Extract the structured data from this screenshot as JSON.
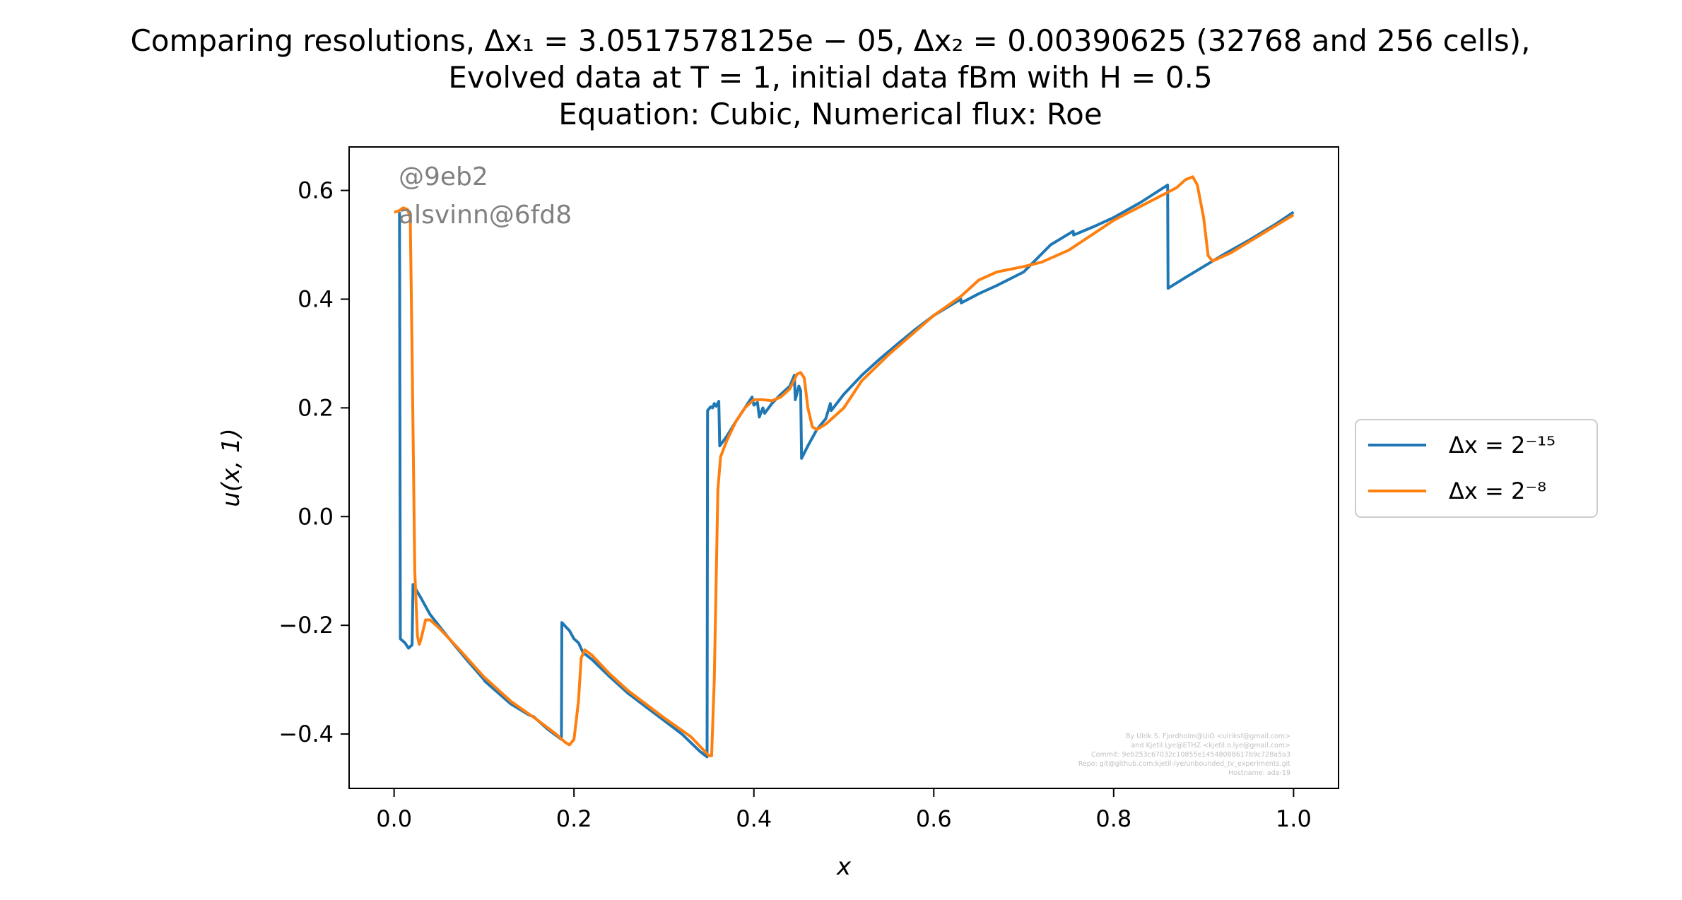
{
  "chart_data": {
    "type": "line",
    "title": [
      "Comparing resolutions, Δx₁ = 3.0517578125e − 05, Δx₂ = 0.00390625 (32768 and 256 cells),",
      "Evolved data at T = 1, initial data fBm with H = 0.5",
      "Equation: Cubic, Numerical flux: Roe"
    ],
    "xlabel": "x",
    "ylabel": "u(x, 1)",
    "xlim": [
      -0.05,
      1.05
    ],
    "ylim": [
      -0.5,
      0.68
    ],
    "xticks": [
      0.0,
      0.2,
      0.4,
      0.6,
      0.8,
      1.0
    ],
    "xtick_labels": [
      "0.0",
      "0.2",
      "0.4",
      "0.6",
      "0.8",
      "1.0"
    ],
    "yticks": [
      -0.4,
      -0.2,
      0.0,
      0.2,
      0.4,
      0.6
    ],
    "ytick_labels": [
      "−0.4",
      "−0.2",
      "0.0",
      "0.2",
      "0.4",
      "0.6"
    ],
    "grid": false,
    "legend_position": "outside-right",
    "watermarks": [
      "@9eb2",
      "alsvinn@6fd8"
    ],
    "footer_lines": [
      "By Ulrik S. Fjordholm@UiO <ulriksf@gmail.com>",
      "and Kjetil Lye@ETHZ <kjetil.o.lye@gmail.com>",
      "Commit: 9eb253c67032c10855e14548088617b9c728a5a3",
      "Repo: git@github.com:kjetil-lye/unbounded_tv_experiments.git",
      "Hostname: ada-19"
    ],
    "series": [
      {
        "name": "Δx = 2⁻¹⁵",
        "color": "#1f77b4",
        "points": [
          [
            0.006,
            0.56
          ],
          [
            0.007,
            -0.225
          ],
          [
            0.012,
            -0.232
          ],
          [
            0.016,
            -0.242
          ],
          [
            0.02,
            -0.236
          ],
          [
            0.021,
            -0.125
          ],
          [
            0.03,
            -0.15
          ],
          [
            0.04,
            -0.18
          ],
          [
            0.06,
            -0.222
          ],
          [
            0.08,
            -0.262
          ],
          [
            0.1,
            -0.3
          ],
          [
            0.101,
            -0.303
          ],
          [
            0.13,
            -0.345
          ],
          [
            0.15,
            -0.365
          ],
          [
            0.155,
            -0.368
          ],
          [
            0.17,
            -0.39
          ],
          [
            0.186,
            -0.41
          ],
          [
            0.1865,
            -0.195
          ],
          [
            0.195,
            -0.21
          ],
          [
            0.2,
            -0.225
          ],
          [
            0.205,
            -0.232
          ],
          [
            0.21,
            -0.25
          ],
          [
            0.22,
            -0.263
          ],
          [
            0.24,
            -0.295
          ],
          [
            0.26,
            -0.325
          ],
          [
            0.28,
            -0.35
          ],
          [
            0.3,
            -0.375
          ],
          [
            0.32,
            -0.4
          ],
          [
            0.34,
            -0.432
          ],
          [
            0.348,
            -0.442
          ],
          [
            0.3485,
            0.195
          ],
          [
            0.352,
            0.202
          ],
          [
            0.354,
            0.2
          ],
          [
            0.356,
            0.208
          ],
          [
            0.358,
            0.203
          ],
          [
            0.361,
            0.212
          ],
          [
            0.362,
            0.13
          ],
          [
            0.37,
            0.148
          ],
          [
            0.38,
            0.175
          ],
          [
            0.39,
            0.2
          ],
          [
            0.398,
            0.22
          ],
          [
            0.4,
            0.205
          ],
          [
            0.404,
            0.21
          ],
          [
            0.406,
            0.183
          ],
          [
            0.41,
            0.2
          ],
          [
            0.412,
            0.19
          ],
          [
            0.42,
            0.208
          ],
          [
            0.43,
            0.225
          ],
          [
            0.44,
            0.24
          ],
          [
            0.445,
            0.26
          ],
          [
            0.446,
            0.215
          ],
          [
            0.45,
            0.24
          ],
          [
            0.452,
            0.232
          ],
          [
            0.453,
            0.107
          ],
          [
            0.46,
            0.13
          ],
          [
            0.47,
            0.16
          ],
          [
            0.48,
            0.18
          ],
          [
            0.485,
            0.208
          ],
          [
            0.486,
            0.195
          ],
          [
            0.5,
            0.225
          ],
          [
            0.52,
            0.26
          ],
          [
            0.54,
            0.29
          ],
          [
            0.56,
            0.318
          ],
          [
            0.58,
            0.345
          ],
          [
            0.6,
            0.37
          ],
          [
            0.62,
            0.39
          ],
          [
            0.63,
            0.4
          ],
          [
            0.6305,
            0.393
          ],
          [
            0.65,
            0.41
          ],
          [
            0.67,
            0.425
          ],
          [
            0.7,
            0.45
          ],
          [
            0.73,
            0.5
          ],
          [
            0.755,
            0.525
          ],
          [
            0.7555,
            0.518
          ],
          [
            0.78,
            0.535
          ],
          [
            0.8,
            0.55
          ],
          [
            0.83,
            0.578
          ],
          [
            0.86,
            0.61
          ],
          [
            0.8605,
            0.42
          ],
          [
            0.88,
            0.44
          ],
          [
            0.9,
            0.46
          ],
          [
            0.92,
            0.48
          ],
          [
            0.95,
            0.508
          ],
          [
            0.98,
            0.538
          ],
          [
            1.0,
            0.56
          ]
        ]
      },
      {
        "name": "Δx = 2⁻⁸",
        "color": "#ff7f0e",
        "points": [
          [
            0.0,
            0.56
          ],
          [
            0.005,
            0.562
          ],
          [
            0.01,
            0.568
          ],
          [
            0.015,
            0.565
          ],
          [
            0.018,
            0.55
          ],
          [
            0.02,
            0.3
          ],
          [
            0.023,
            -0.1
          ],
          [
            0.026,
            -0.22
          ],
          [
            0.028,
            -0.235
          ],
          [
            0.03,
            -0.225
          ],
          [
            0.035,
            -0.19
          ],
          [
            0.04,
            -0.19
          ],
          [
            0.05,
            -0.205
          ],
          [
            0.07,
            -0.24
          ],
          [
            0.1,
            -0.295
          ],
          [
            0.13,
            -0.34
          ],
          [
            0.16,
            -0.375
          ],
          [
            0.18,
            -0.4
          ],
          [
            0.19,
            -0.415
          ],
          [
            0.195,
            -0.42
          ],
          [
            0.2,
            -0.41
          ],
          [
            0.205,
            -0.34
          ],
          [
            0.208,
            -0.26
          ],
          [
            0.212,
            -0.245
          ],
          [
            0.22,
            -0.255
          ],
          [
            0.24,
            -0.29
          ],
          [
            0.26,
            -0.32
          ],
          [
            0.3,
            -0.37
          ],
          [
            0.33,
            -0.405
          ],
          [
            0.35,
            -0.44
          ],
          [
            0.353,
            -0.44
          ],
          [
            0.356,
            -0.3
          ],
          [
            0.36,
            0.05
          ],
          [
            0.363,
            0.11
          ],
          [
            0.37,
            0.14
          ],
          [
            0.38,
            0.175
          ],
          [
            0.39,
            0.2
          ],
          [
            0.4,
            0.215
          ],
          [
            0.41,
            0.215
          ],
          [
            0.42,
            0.213
          ],
          [
            0.43,
            0.22
          ],
          [
            0.44,
            0.235
          ],
          [
            0.448,
            0.262
          ],
          [
            0.452,
            0.265
          ],
          [
            0.456,
            0.255
          ],
          [
            0.46,
            0.2
          ],
          [
            0.465,
            0.165
          ],
          [
            0.47,
            0.16
          ],
          [
            0.48,
            0.17
          ],
          [
            0.5,
            0.2
          ],
          [
            0.52,
            0.25
          ],
          [
            0.55,
            0.298
          ],
          [
            0.6,
            0.37
          ],
          [
            0.63,
            0.405
          ],
          [
            0.65,
            0.435
          ],
          [
            0.67,
            0.45
          ],
          [
            0.7,
            0.46
          ],
          [
            0.72,
            0.468
          ],
          [
            0.75,
            0.49
          ],
          [
            0.8,
            0.545
          ],
          [
            0.85,
            0.588
          ],
          [
            0.87,
            0.605
          ],
          [
            0.88,
            0.62
          ],
          [
            0.888,
            0.625
          ],
          [
            0.893,
            0.61
          ],
          [
            0.9,
            0.55
          ],
          [
            0.905,
            0.48
          ],
          [
            0.91,
            0.47
          ],
          [
            0.93,
            0.485
          ],
          [
            0.95,
            0.505
          ],
          [
            0.98,
            0.535
          ],
          [
            1.0,
            0.555
          ]
        ]
      }
    ]
  }
}
